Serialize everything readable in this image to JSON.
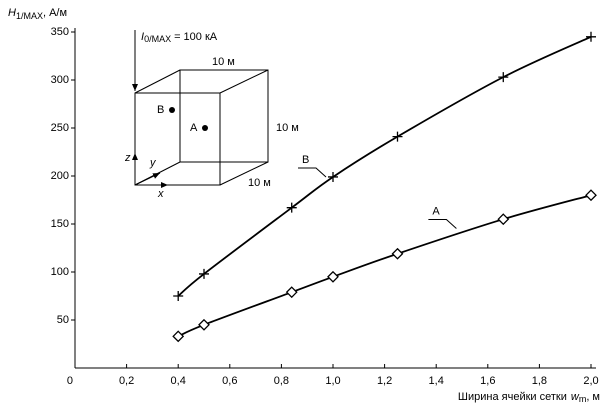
{
  "chart_data": {
    "type": "line",
    "y_label": {
      "symbol": "H",
      "subscript": "1/MAX",
      "unit": ", А/м"
    },
    "x_label": {
      "text": "Ширина ячейки сетки",
      "symbol": "w",
      "subscript": "m",
      "unit": ", м"
    },
    "xlim": [
      0,
      2.0
    ],
    "xticks": [
      0,
      {
        "value": 0.2,
        "label": "0,2"
      },
      {
        "value": 0.4,
        "label": "0,4"
      },
      {
        "value": 0.6,
        "label": "0,6"
      },
      {
        "value": 0.8,
        "label": "0,8"
      },
      {
        "value": 1.0,
        "label": "1,0"
      },
      {
        "value": 1.2,
        "label": "1,2"
      },
      {
        "value": 1.4,
        "label": "1,4"
      },
      {
        "value": 1.6,
        "label": "1,6"
      },
      {
        "value": 1.8,
        "label": "1,8"
      },
      {
        "value": 2.0,
        "label": "2,0"
      }
    ],
    "ylim": [
      0,
      350
    ],
    "yticks": [
      50,
      100,
      150,
      200,
      250,
      300,
      350
    ],
    "series": [
      {
        "name": "B",
        "marker": "cross",
        "color": "#000000",
        "x": [
          0.4,
          0.5,
          0.84,
          1.0,
          1.25,
          1.66,
          2.0
        ],
        "values": [
          75,
          98,
          167,
          199,
          241,
          303,
          345
        ]
      },
      {
        "name": "A",
        "marker": "diamond",
        "color": "#000000",
        "x": [
          0.4,
          0.5,
          0.84,
          1.0,
          1.25,
          1.66,
          2.0
        ],
        "values": [
          33,
          45,
          79,
          95,
          119,
          155,
          180
        ]
      }
    ],
    "inset": {
      "current": {
        "symbol": "I",
        "subscript": "0/MAX",
        "value": "= 100 кА"
      },
      "dimensions": [
        "10 м",
        "10 м",
        "10 м"
      ],
      "axes": [
        "z",
        "y",
        "x"
      ]
    }
  }
}
